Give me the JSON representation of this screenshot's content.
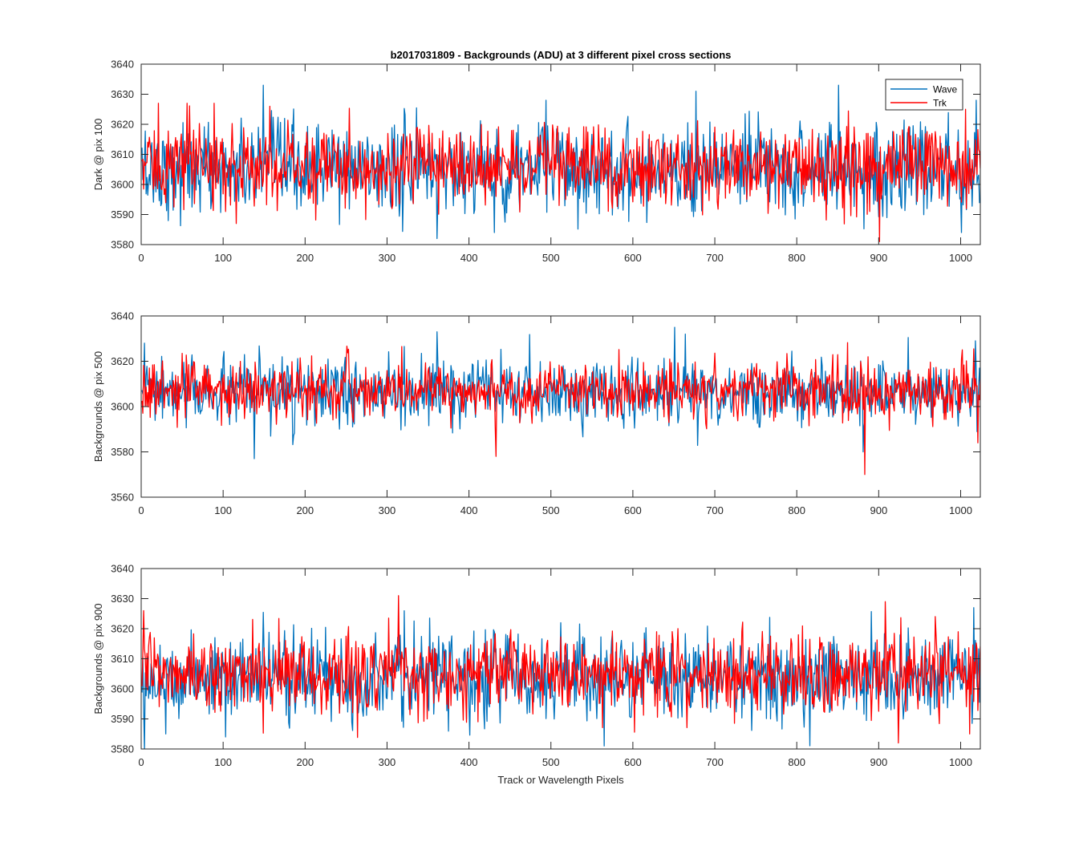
{
  "title": "b2017031809 - Backgrounds (ADU) at 3 different pixel cross sections",
  "xlabel": "Track or Wavelength Pixels",
  "colors": {
    "wave": "#0072BD",
    "trk": "#FF0000",
    "axis": "#262626"
  },
  "legend": {
    "items": [
      "Wave",
      "Trk"
    ],
    "location": "top-right of first panel"
  },
  "chart_data": [
    {
      "type": "line",
      "ylabel": "Dark @ pix 100",
      "xlim": [
        0,
        1024
      ],
      "ylim": [
        3580,
        3640
      ],
      "xticks": [
        0,
        100,
        200,
        300,
        400,
        500,
        600,
        700,
        800,
        900,
        1000
      ],
      "yticks": [
        3580,
        3590,
        3600,
        3610,
        3620,
        3630,
        3640
      ],
      "series": [
        {
          "name": "Wave",
          "color": "#0072BD",
          "mean": 3605,
          "sd": 7.5,
          "spikes": [
            [
              148,
              3633
            ],
            [
              360,
              3582
            ],
            [
              430,
              3584
            ],
            [
              493,
              3628
            ],
            [
              676,
              3631
            ],
            [
              850,
              3633
            ],
            [
              1000,
              3584
            ],
            [
              1018,
              3628
            ]
          ]
        },
        {
          "name": "Trk",
          "color": "#FF0000",
          "mean": 3606,
          "sd": 6.5,
          "spikes": [
            [
              20,
              3627
            ],
            [
              55,
              3627
            ],
            [
              88,
              3627
            ],
            [
              115,
              3587
            ],
            [
              156,
              3626
            ],
            [
              900,
              3581
            ],
            [
              1005,
              3625
            ]
          ]
        }
      ]
    },
    {
      "type": "line",
      "ylabel": "Backgrounds @ pix 500",
      "xlim": [
        0,
        1024
      ],
      "ylim": [
        3560,
        3640
      ],
      "xticks": [
        0,
        100,
        200,
        300,
        400,
        500,
        600,
        700,
        800,
        900,
        1000
      ],
      "yticks": [
        3560,
        3580,
        3600,
        3620,
        3640
      ],
      "series": [
        {
          "name": "Wave",
          "color": "#0072BD",
          "mean": 3606,
          "sd": 7,
          "spikes": [
            [
              3,
              3628
            ],
            [
              137,
              3577
            ],
            [
              360,
              3633
            ],
            [
              650,
              3635
            ],
            [
              663,
              3632
            ],
            [
              880,
              3580
            ],
            [
              1017,
              3629
            ]
          ]
        },
        {
          "name": "Trk",
          "color": "#FF0000",
          "mean": 3607,
          "sd": 6,
          "spikes": [
            [
              432,
              3578
            ],
            [
              882,
              3570
            ],
            [
              1020,
              3584
            ]
          ]
        }
      ]
    },
    {
      "type": "line",
      "ylabel": "Backgrounds @ pix 900",
      "xlim": [
        0,
        1024
      ],
      "ylim": [
        3580,
        3640
      ],
      "xticks": [
        0,
        100,
        200,
        300,
        400,
        500,
        600,
        700,
        800,
        900,
        1000
      ],
      "yticks": [
        3580,
        3590,
        3600,
        3610,
        3620,
        3630,
        3640
      ],
      "series": [
        {
          "name": "Wave",
          "color": "#0072BD",
          "mean": 3604,
          "sd": 7,
          "spikes": [
            [
              29,
              3585
            ],
            [
              102,
              3584
            ],
            [
              564,
              3581
            ],
            [
              1015,
              3627
            ]
          ]
        },
        {
          "name": "Trk",
          "color": "#FF0000",
          "mean": 3605,
          "sd": 6.5,
          "spikes": [
            [
              2,
              3626
            ],
            [
              313,
              3631
            ],
            [
              907,
              3629
            ],
            [
              923,
              3582
            ],
            [
              1010,
              3585
            ]
          ]
        }
      ]
    }
  ]
}
